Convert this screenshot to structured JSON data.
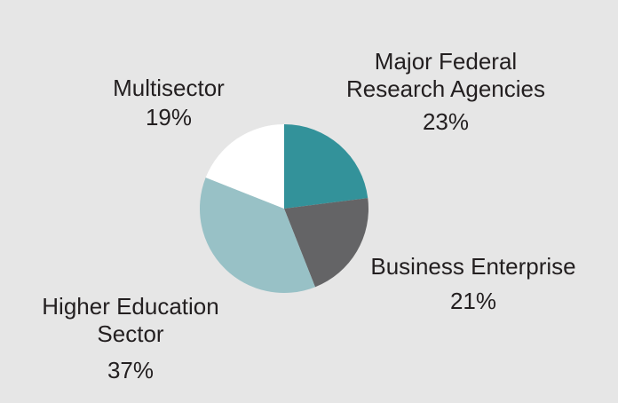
{
  "colors": {
    "background": "#e6e6e6",
    "text": "#231f20"
  },
  "chart_data": {
    "type": "pie",
    "title": "",
    "start": "12 o'clock",
    "direction": "clockwise",
    "slices": [
      {
        "id": "federal",
        "label_lines": [
          "Major Federal",
          "Research Agencies"
        ],
        "value": 23,
        "value_label": "23%",
        "color": "#33929a"
      },
      {
        "id": "business",
        "label_lines": [
          "Business Enterprise"
        ],
        "value": 21,
        "value_label": "21%",
        "color": "#646466"
      },
      {
        "id": "higher-ed",
        "label_lines": [
          "Higher Education",
          "Sector"
        ],
        "value": 37,
        "value_label": "37%",
        "color": "#98c1c6"
      },
      {
        "id": "multisector",
        "label_lines": [
          "Multisector"
        ],
        "value": 19,
        "value_label": "19%",
        "color": "#ffffff"
      }
    ]
  }
}
